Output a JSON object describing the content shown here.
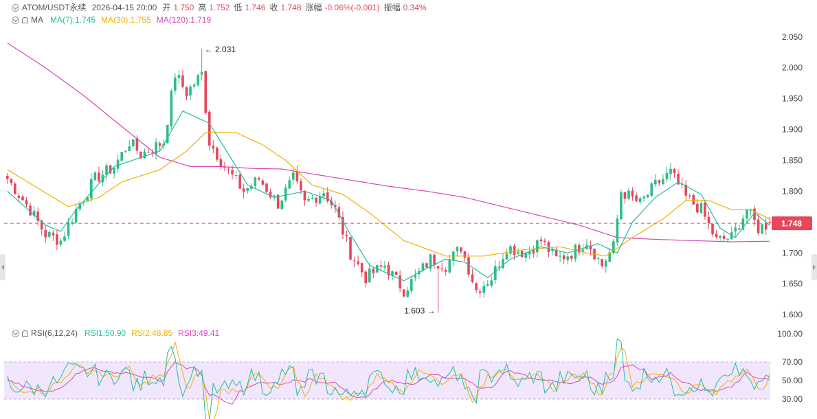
{
  "header": {
    "symbol": "ATOM/USDT永续",
    "datetime": "2026-04-15 20:00",
    "open_label": "开",
    "open_value": "1.750",
    "high_label": "高",
    "high_value": "1.752",
    "low_label": "低",
    "low_value": "1.746",
    "close_label": "收",
    "close_value": "1.748",
    "change_label": "涨幅",
    "change_value": "-0.06%(-0.001)",
    "amp_label": "振幅",
    "amp_value": "0.34%"
  },
  "ma_legend": {
    "label": "MA",
    "ma7": "MA(7):1.745",
    "ma30": "MA(30):1.755",
    "ma120": "MA(120):1.719"
  },
  "rsi_legend": {
    "label": "RSI(6,12,24)",
    "rsi1": "RSI1:50.90",
    "rsi2": "RSI2:48.85",
    "rsi3": "RSI3:49.41"
  },
  "colors": {
    "up": "#2ebd85",
    "down": "#e8465a",
    "ma7": "#1fbfa0",
    "ma30": "#f4b000",
    "ma120": "#d54ab8",
    "rsi_band": "#f1e6fb",
    "price_tag": "#e8465a"
  },
  "chart_data": {
    "type": "candlestick",
    "price_axis": {
      "ticks": [
        "2.050",
        "2.000",
        "1.950",
        "1.900",
        "1.850",
        "1.800",
        "1.750",
        "1.700",
        "1.650",
        "1.600"
      ],
      "range": [
        1.589,
        2.072
      ]
    },
    "last_price": "1.748",
    "high_marker": "2.031",
    "low_marker": "1.603",
    "price_waypoints": [
      [
        0,
        1.82
      ],
      [
        6,
        1.77
      ],
      [
        10,
        1.73
      ],
      [
        14,
        1.72
      ],
      [
        18,
        1.77
      ],
      [
        23,
        1.82
      ],
      [
        28,
        1.84
      ],
      [
        32,
        1.88
      ],
      [
        35,
        1.86
      ],
      [
        38,
        1.87
      ],
      [
        41,
        1.88
      ],
      [
        44,
        1.99
      ],
      [
        47,
        1.96
      ],
      [
        51,
        1.99
      ],
      [
        53,
        1.88
      ],
      [
        57,
        1.84
      ],
      [
        62,
        1.8
      ],
      [
        66,
        1.82
      ],
      [
        71,
        1.78
      ],
      [
        75,
        1.82
      ],
      [
        78,
        1.78
      ],
      [
        83,
        1.8
      ],
      [
        86,
        1.77
      ],
      [
        90,
        1.7
      ],
      [
        94,
        1.66
      ],
      [
        99,
        1.68
      ],
      [
        104,
        1.64
      ],
      [
        107,
        1.66
      ],
      [
        111,
        1.69
      ],
      [
        115,
        1.68
      ],
      [
        119,
        1.71
      ],
      [
        123,
        1.64
      ],
      [
        127,
        1.66
      ],
      [
        131,
        1.71
      ],
      [
        136,
        1.7
      ],
      [
        140,
        1.72
      ],
      [
        144,
        1.69
      ],
      [
        148,
        1.7
      ],
      [
        152,
        1.72
      ],
      [
        156,
        1.68
      ],
      [
        159,
        1.71
      ],
      [
        161,
        1.8
      ],
      [
        166,
        1.78
      ],
      [
        170,
        1.81
      ],
      [
        174,
        1.83
      ],
      [
        178,
        1.79
      ],
      [
        182,
        1.77
      ],
      [
        186,
        1.72
      ],
      [
        190,
        1.725
      ],
      [
        194,
        1.77
      ],
      [
        197,
        1.74
      ],
      [
        200,
        1.748
      ]
    ],
    "ma7_waypoints": [
      [
        0,
        1.8
      ],
      [
        10,
        1.745
      ],
      [
        14,
        1.735
      ],
      [
        18,
        1.77
      ],
      [
        28,
        1.84
      ],
      [
        40,
        1.865
      ],
      [
        46,
        1.93
      ],
      [
        53,
        1.91
      ],
      [
        58,
        1.86
      ],
      [
        63,
        1.81
      ],
      [
        70,
        1.79
      ],
      [
        78,
        1.8
      ],
      [
        85,
        1.785
      ],
      [
        90,
        1.73
      ],
      [
        95,
        1.68
      ],
      [
        104,
        1.655
      ],
      [
        110,
        1.675
      ],
      [
        115,
        1.69
      ],
      [
        120,
        1.685
      ],
      [
        126,
        1.66
      ],
      [
        132,
        1.69
      ],
      [
        140,
        1.71
      ],
      [
        147,
        1.7
      ],
      [
        155,
        1.715
      ],
      [
        160,
        1.7
      ],
      [
        164,
        1.75
      ],
      [
        170,
        1.79
      ],
      [
        176,
        1.815
      ],
      [
        182,
        1.795
      ],
      [
        187,
        1.74
      ],
      [
        191,
        1.725
      ],
      [
        196,
        1.765
      ],
      [
        200,
        1.745
      ]
    ],
    "ma30_waypoints": [
      [
        0,
        1.835
      ],
      [
        8,
        1.805
      ],
      [
        16,
        1.775
      ],
      [
        24,
        1.79
      ],
      [
        30,
        1.815
      ],
      [
        40,
        1.835
      ],
      [
        47,
        1.865
      ],
      [
        52,
        1.895
      ],
      [
        60,
        1.895
      ],
      [
        67,
        1.875
      ],
      [
        73,
        1.85
      ],
      [
        80,
        1.81
      ],
      [
        88,
        1.795
      ],
      [
        95,
        1.765
      ],
      [
        104,
        1.72
      ],
      [
        115,
        1.695
      ],
      [
        125,
        1.695
      ],
      [
        135,
        1.705
      ],
      [
        145,
        1.71
      ],
      [
        152,
        1.7
      ],
      [
        157,
        1.695
      ],
      [
        164,
        1.725
      ],
      [
        172,
        1.755
      ],
      [
        178,
        1.785
      ],
      [
        184,
        1.785
      ],
      [
        190,
        1.77
      ],
      [
        195,
        1.77
      ],
      [
        200,
        1.755
      ]
    ],
    "ma120_waypoints": [
      [
        0,
        2.04
      ],
      [
        10,
        2.0
      ],
      [
        20,
        1.955
      ],
      [
        30,
        1.905
      ],
      [
        40,
        1.855
      ],
      [
        48,
        1.84
      ],
      [
        56,
        1.84
      ],
      [
        64,
        1.837
      ],
      [
        72,
        1.836
      ],
      [
        80,
        1.828
      ],
      [
        90,
        1.818
      ],
      [
        100,
        1.808
      ],
      [
        110,
        1.8
      ],
      [
        120,
        1.79
      ],
      [
        130,
        1.775
      ],
      [
        140,
        1.76
      ],
      [
        150,
        1.745
      ],
      [
        160,
        1.725
      ],
      [
        170,
        1.722
      ],
      [
        180,
        1.72
      ],
      [
        190,
        1.718
      ],
      [
        200,
        1.719
      ]
    ],
    "rsi_axis": {
      "ticks": [
        "100.00",
        "70.00",
        "50.00",
        "30.00"
      ]
    },
    "rsi_range": [
      0,
      100
    ]
  }
}
